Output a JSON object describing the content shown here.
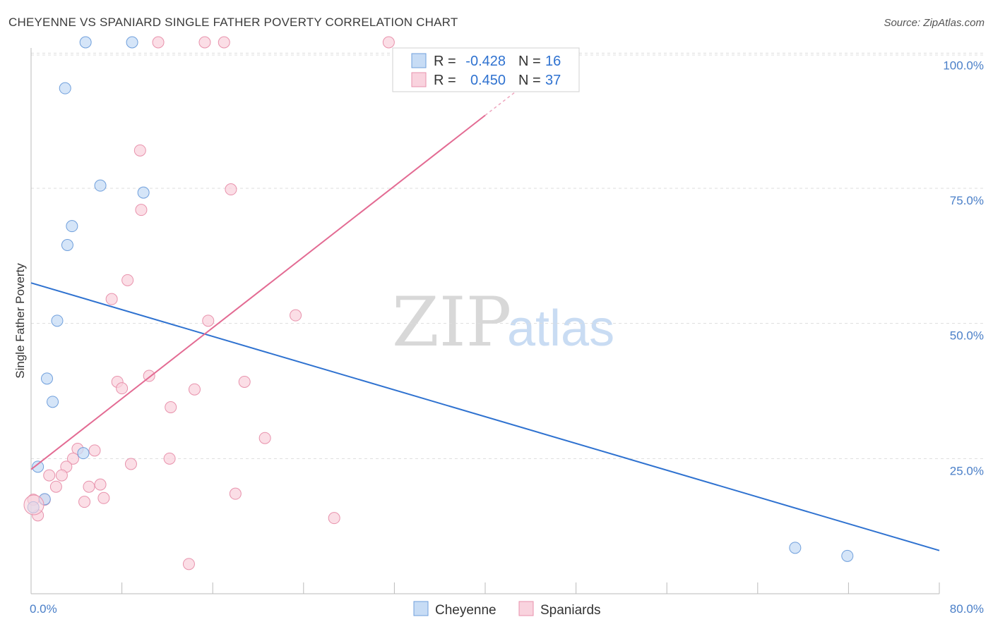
{
  "title": "CHEYENNE VS SPANIARD SINGLE FATHER POVERTY CORRELATION CHART",
  "source": "Source: ZipAtlas.com",
  "watermark": {
    "zip": "ZIP",
    "atlas": "atlas"
  },
  "colors": {
    "cheyenne_fill": "#c7dcf5",
    "cheyenne_stroke": "#6f9fdc",
    "cheyenne_line": "#2f72d0",
    "spaniards_fill": "#f9d3de",
    "spaniards_stroke": "#e892ac",
    "spaniards_line": "#e36b93",
    "value_text": "#2f72d0"
  },
  "legend": {
    "rows": [
      {
        "r_label": "R =",
        "r_value": "-0.428",
        "n_label": "N =",
        "n_value": "16"
      },
      {
        "r_label": "R =",
        "r_value": "0.450",
        "n_label": "N =",
        "n_value": "37"
      }
    ]
  },
  "chart_data": {
    "type": "scatter",
    "title": "CHEYENNE VS SPANIARD SINGLE FATHER POVERTY CORRELATION CHART",
    "xlabel": "",
    "ylabel": "Single Father Poverty",
    "xlim": [
      0,
      80
    ],
    "ylim": [
      0,
      102
    ],
    "x_tick_labels": [
      "0.0%",
      "80.0%"
    ],
    "y_tick_labels": [
      "100.0%",
      "75.0%",
      "50.0%",
      "25.0%"
    ],
    "y_ticks": [
      100,
      75,
      50,
      25
    ],
    "grid": true,
    "legend_position": "top-center",
    "series": [
      {
        "name": "Cheyenne",
        "points": [
          [
            4.8,
            102
          ],
          [
            8.9,
            102
          ],
          [
            3.0,
            93.5
          ],
          [
            6.1,
            75.5
          ],
          [
            9.9,
            74.2
          ],
          [
            3.6,
            68
          ],
          [
            3.2,
            64.5
          ],
          [
            2.3,
            50.5
          ],
          [
            1.4,
            39.8
          ],
          [
            1.9,
            35.5
          ],
          [
            4.6,
            26
          ],
          [
            0.6,
            23.5
          ],
          [
            1.2,
            17.5
          ],
          [
            0.2,
            16
          ],
          [
            67.3,
            8.5
          ],
          [
            71.9,
            7
          ]
        ],
        "trend": {
          "x": [
            0,
            80
          ],
          "y": [
            57.5,
            8
          ]
        }
      },
      {
        "name": "Spaniards",
        "points": [
          [
            11.2,
            102
          ],
          [
            15.3,
            102
          ],
          [
            17.0,
            102
          ],
          [
            31.5,
            102
          ],
          [
            9.6,
            82
          ],
          [
            17.6,
            74.8
          ],
          [
            9.7,
            71
          ],
          [
            8.5,
            58
          ],
          [
            7.1,
            54.5
          ],
          [
            23.3,
            51.5
          ],
          [
            15.6,
            50.5
          ],
          [
            10.4,
            40.3
          ],
          [
            7.6,
            39.2
          ],
          [
            8.0,
            38
          ],
          [
            14.4,
            37.8
          ],
          [
            18.8,
            39.2
          ],
          [
            12.3,
            34.5
          ],
          [
            20.6,
            28.8
          ],
          [
            4.1,
            26.8
          ],
          [
            5.6,
            26.5
          ],
          [
            3.7,
            25
          ],
          [
            12.2,
            25
          ],
          [
            8.8,
            24
          ],
          [
            3.1,
            23.5
          ],
          [
            1.6,
            21.9
          ],
          [
            2.7,
            21.9
          ],
          [
            6.1,
            20.2
          ],
          [
            5.1,
            19.8
          ],
          [
            2.2,
            19.8
          ],
          [
            18.0,
            18.5
          ],
          [
            6.4,
            17.7
          ],
          [
            1.2,
            17.4
          ],
          [
            4.7,
            17.0
          ],
          [
            0.2,
            17.4
          ],
          [
            0.6,
            14.5
          ],
          [
            26.7,
            14.0
          ],
          [
            13.9,
            5.5
          ]
        ],
        "trend": {
          "x": [
            0,
            40
          ],
          "y": [
            23,
            88.5
          ]
        },
        "trend_dashed": {
          "x": [
            40,
            43.5
          ],
          "y": [
            88.5,
            94.2
          ]
        }
      }
    ]
  },
  "bottom_legend": [
    "Cheyenne",
    "Spaniards"
  ]
}
